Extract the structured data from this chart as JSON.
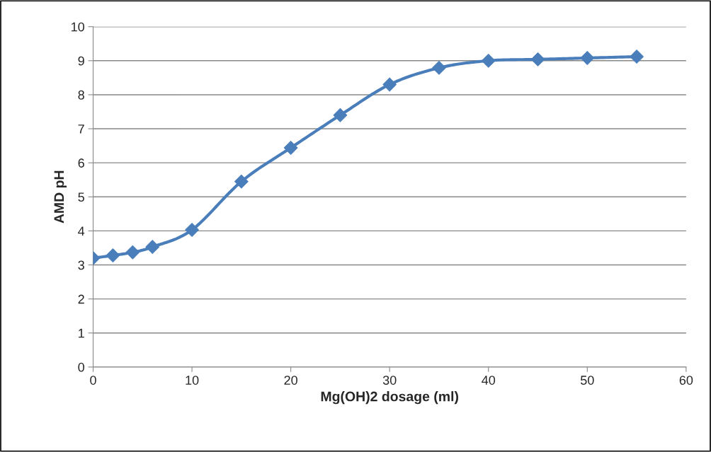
{
  "chart_data": {
    "type": "line",
    "xlabel": "Mg(OH)2 dosage (ml)",
    "ylabel": "AMD pH",
    "x": [
      0,
      2,
      4,
      6,
      10,
      15,
      20,
      25,
      30,
      35,
      40,
      45,
      50,
      55
    ],
    "series": [
      {
        "color": "#4a7ebb",
        "values": [
          3.2,
          3.28,
          3.37,
          3.53,
          4.03,
          5.45,
          6.44,
          7.4,
          8.3,
          8.79,
          9.0,
          9.04,
          9.08,
          9.12
        ]
      }
    ],
    "xlim": [
      0,
      60
    ],
    "xticks": [
      0,
      10,
      20,
      30,
      40,
      50,
      60
    ],
    "ylim": [
      0,
      10
    ],
    "yticks": [
      0,
      1,
      2,
      3,
      4,
      5,
      6,
      7,
      8,
      9,
      10
    ],
    "grid": "y",
    "marker": "diamond",
    "line_style": "solid",
    "legend": false
  }
}
